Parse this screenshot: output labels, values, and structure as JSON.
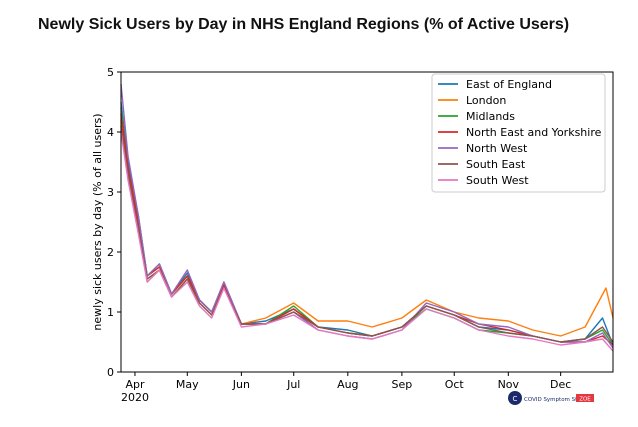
{
  "title": "Newly Sick Users by Day in NHS England Regions (% of Active Users)",
  "logo": {
    "text": "COVID Symptom Study",
    "badge": "ZOE"
  },
  "chart_data": {
    "type": "line",
    "ylabel": "newly sick users by day (% of all users)",
    "xlabel": "",
    "ylim": [
      0,
      5
    ],
    "y_ticks": [
      0,
      1,
      2,
      3,
      4,
      5
    ],
    "x_start": "2020-03-24",
    "x_end": "2020-12-31",
    "x_ticks": [
      {
        "label": "Apr",
        "date": "2020-04-01"
      },
      {
        "label": "May",
        "date": "2020-05-01"
      },
      {
        "label": "Jun",
        "date": "2020-06-01"
      },
      {
        "label": "Jul",
        "date": "2020-07-01"
      },
      {
        "label": "Aug",
        "date": "2020-08-01"
      },
      {
        "label": "Sep",
        "date": "2020-09-01"
      },
      {
        "label": "Oct",
        "date": "2020-10-01"
      },
      {
        "label": "Nov",
        "date": "2020-11-01"
      },
      {
        "label": "Dec",
        "date": "2020-12-01"
      }
    ],
    "x_year_label": "2020",
    "grid": false,
    "legend_position": "top-right",
    "series": [
      {
        "name": "East of England",
        "color": "#1f77b4",
        "points": [
          [
            "2020-03-24",
            4.5
          ],
          [
            "2020-03-28",
            3.5
          ],
          [
            "2020-04-03",
            2.6
          ],
          [
            "2020-04-08",
            1.6
          ],
          [
            "2020-04-15",
            1.8
          ],
          [
            "2020-04-22",
            1.3
          ],
          [
            "2020-05-01",
            1.65
          ],
          [
            "2020-05-08",
            1.2
          ],
          [
            "2020-05-15",
            1.0
          ],
          [
            "2020-05-22",
            1.5
          ],
          [
            "2020-06-01",
            0.8
          ],
          [
            "2020-06-15",
            0.85
          ],
          [
            "2020-07-01",
            1.05
          ],
          [
            "2020-07-15",
            0.75
          ],
          [
            "2020-08-01",
            0.7
          ],
          [
            "2020-08-15",
            0.6
          ],
          [
            "2020-09-01",
            0.75
          ],
          [
            "2020-09-15",
            1.1
          ],
          [
            "2020-10-01",
            0.95
          ],
          [
            "2020-10-15",
            0.75
          ],
          [
            "2020-11-01",
            0.7
          ],
          [
            "2020-11-15",
            0.6
          ],
          [
            "2020-12-01",
            0.5
          ],
          [
            "2020-12-15",
            0.55
          ],
          [
            "2020-12-25",
            0.9
          ],
          [
            "2020-12-31",
            0.45
          ]
        ]
      },
      {
        "name": "London",
        "color": "#ff7f0e",
        "points": [
          [
            "2020-03-24",
            4.2
          ],
          [
            "2020-03-28",
            3.3
          ],
          [
            "2020-04-03",
            2.4
          ],
          [
            "2020-04-08",
            1.5
          ],
          [
            "2020-04-15",
            1.7
          ],
          [
            "2020-04-22",
            1.25
          ],
          [
            "2020-05-01",
            1.55
          ],
          [
            "2020-05-08",
            1.15
          ],
          [
            "2020-05-15",
            0.95
          ],
          [
            "2020-05-22",
            1.4
          ],
          [
            "2020-06-01",
            0.8
          ],
          [
            "2020-06-15",
            0.9
          ],
          [
            "2020-07-01",
            1.15
          ],
          [
            "2020-07-15",
            0.85
          ],
          [
            "2020-08-01",
            0.85
          ],
          [
            "2020-08-15",
            0.75
          ],
          [
            "2020-09-01",
            0.9
          ],
          [
            "2020-09-15",
            1.2
          ],
          [
            "2020-10-01",
            1.0
          ],
          [
            "2020-10-15",
            0.9
          ],
          [
            "2020-11-01",
            0.85
          ],
          [
            "2020-11-15",
            0.7
          ],
          [
            "2020-12-01",
            0.6
          ],
          [
            "2020-12-15",
            0.75
          ],
          [
            "2020-12-27",
            1.4
          ],
          [
            "2020-12-31",
            0.9
          ]
        ]
      },
      {
        "name": "Midlands",
        "color": "#2ca02c",
        "points": [
          [
            "2020-03-24",
            4.4
          ],
          [
            "2020-03-28",
            3.4
          ],
          [
            "2020-04-03",
            2.5
          ],
          [
            "2020-04-08",
            1.6
          ],
          [
            "2020-04-15",
            1.8
          ],
          [
            "2020-04-22",
            1.3
          ],
          [
            "2020-05-01",
            1.6
          ],
          [
            "2020-05-08",
            1.2
          ],
          [
            "2020-05-15",
            1.0
          ],
          [
            "2020-05-22",
            1.45
          ],
          [
            "2020-06-01",
            0.8
          ],
          [
            "2020-06-15",
            0.8
          ],
          [
            "2020-07-01",
            1.1
          ],
          [
            "2020-07-15",
            0.75
          ],
          [
            "2020-08-01",
            0.65
          ],
          [
            "2020-08-15",
            0.6
          ],
          [
            "2020-09-01",
            0.75
          ],
          [
            "2020-09-15",
            1.05
          ],
          [
            "2020-10-01",
            0.9
          ],
          [
            "2020-10-15",
            0.7
          ],
          [
            "2020-11-01",
            0.65
          ],
          [
            "2020-11-15",
            0.6
          ],
          [
            "2020-12-01",
            0.5
          ],
          [
            "2020-12-15",
            0.55
          ],
          [
            "2020-12-25",
            0.7
          ],
          [
            "2020-12-31",
            0.45
          ]
        ]
      },
      {
        "name": "North East and Yorkshire",
        "color": "#d62728",
        "points": [
          [
            "2020-03-24",
            4.3
          ],
          [
            "2020-03-28",
            3.4
          ],
          [
            "2020-04-03",
            2.5
          ],
          [
            "2020-04-08",
            1.6
          ],
          [
            "2020-04-15",
            1.75
          ],
          [
            "2020-04-22",
            1.3
          ],
          [
            "2020-05-01",
            1.6
          ],
          [
            "2020-05-08",
            1.2
          ],
          [
            "2020-05-15",
            1.0
          ],
          [
            "2020-05-22",
            1.45
          ],
          [
            "2020-06-01",
            0.8
          ],
          [
            "2020-06-15",
            0.8
          ],
          [
            "2020-07-01",
            1.05
          ],
          [
            "2020-07-15",
            0.75
          ],
          [
            "2020-08-01",
            0.65
          ],
          [
            "2020-08-15",
            0.6
          ],
          [
            "2020-09-01",
            0.75
          ],
          [
            "2020-09-15",
            1.1
          ],
          [
            "2020-10-01",
            0.95
          ],
          [
            "2020-10-15",
            0.8
          ],
          [
            "2020-11-01",
            0.7
          ],
          [
            "2020-11-15",
            0.6
          ],
          [
            "2020-12-01",
            0.5
          ],
          [
            "2020-12-15",
            0.5
          ],
          [
            "2020-12-25",
            0.6
          ],
          [
            "2020-12-31",
            0.45
          ]
        ]
      },
      {
        "name": "North West",
        "color": "#9467bd",
        "points": [
          [
            "2020-03-24",
            4.8
          ],
          [
            "2020-03-28",
            3.6
          ],
          [
            "2020-04-03",
            2.6
          ],
          [
            "2020-04-08",
            1.6
          ],
          [
            "2020-04-15",
            1.8
          ],
          [
            "2020-04-22",
            1.3
          ],
          [
            "2020-05-01",
            1.7
          ],
          [
            "2020-05-08",
            1.2
          ],
          [
            "2020-05-15",
            1.0
          ],
          [
            "2020-05-22",
            1.5
          ],
          [
            "2020-06-01",
            0.8
          ],
          [
            "2020-06-15",
            0.8
          ],
          [
            "2020-07-01",
            1.0
          ],
          [
            "2020-07-15",
            0.7
          ],
          [
            "2020-08-01",
            0.6
          ],
          [
            "2020-08-15",
            0.55
          ],
          [
            "2020-09-01",
            0.7
          ],
          [
            "2020-09-15",
            1.15
          ],
          [
            "2020-10-01",
            1.0
          ],
          [
            "2020-10-15",
            0.8
          ],
          [
            "2020-11-01",
            0.75
          ],
          [
            "2020-11-15",
            0.6
          ],
          [
            "2020-12-01",
            0.5
          ],
          [
            "2020-12-15",
            0.5
          ],
          [
            "2020-12-25",
            0.65
          ],
          [
            "2020-12-31",
            0.4
          ]
        ]
      },
      {
        "name": "South East",
        "color": "#8c564b",
        "points": [
          [
            "2020-03-24",
            4.1
          ],
          [
            "2020-03-28",
            3.3
          ],
          [
            "2020-04-03",
            2.4
          ],
          [
            "2020-04-08",
            1.55
          ],
          [
            "2020-04-15",
            1.7
          ],
          [
            "2020-04-22",
            1.25
          ],
          [
            "2020-05-01",
            1.55
          ],
          [
            "2020-05-08",
            1.15
          ],
          [
            "2020-05-15",
            0.95
          ],
          [
            "2020-05-22",
            1.4
          ],
          [
            "2020-06-01",
            0.8
          ],
          [
            "2020-06-15",
            0.8
          ],
          [
            "2020-07-01",
            1.0
          ],
          [
            "2020-07-15",
            0.75
          ],
          [
            "2020-08-01",
            0.65
          ],
          [
            "2020-08-15",
            0.6
          ],
          [
            "2020-09-01",
            0.75
          ],
          [
            "2020-09-15",
            1.1
          ],
          [
            "2020-10-01",
            0.95
          ],
          [
            "2020-10-15",
            0.75
          ],
          [
            "2020-11-01",
            0.65
          ],
          [
            "2020-11-15",
            0.6
          ],
          [
            "2020-12-01",
            0.5
          ],
          [
            "2020-12-15",
            0.55
          ],
          [
            "2020-12-25",
            0.75
          ],
          [
            "2020-12-31",
            0.5
          ]
        ]
      },
      {
        "name": "South West",
        "color": "#e377c2",
        "points": [
          [
            "2020-03-24",
            4.0
          ],
          [
            "2020-03-28",
            3.2
          ],
          [
            "2020-04-03",
            2.3
          ],
          [
            "2020-04-08",
            1.5
          ],
          [
            "2020-04-15",
            1.7
          ],
          [
            "2020-04-22",
            1.25
          ],
          [
            "2020-05-01",
            1.5
          ],
          [
            "2020-05-08",
            1.1
          ],
          [
            "2020-05-15",
            0.9
          ],
          [
            "2020-05-22",
            1.4
          ],
          [
            "2020-06-01",
            0.75
          ],
          [
            "2020-06-15",
            0.8
          ],
          [
            "2020-07-01",
            0.95
          ],
          [
            "2020-07-15",
            0.7
          ],
          [
            "2020-08-01",
            0.6
          ],
          [
            "2020-08-15",
            0.55
          ],
          [
            "2020-09-01",
            0.7
          ],
          [
            "2020-09-15",
            1.05
          ],
          [
            "2020-10-01",
            0.9
          ],
          [
            "2020-10-15",
            0.7
          ],
          [
            "2020-11-01",
            0.6
          ],
          [
            "2020-11-15",
            0.55
          ],
          [
            "2020-12-01",
            0.45
          ],
          [
            "2020-12-15",
            0.5
          ],
          [
            "2020-12-25",
            0.55
          ],
          [
            "2020-12-31",
            0.35
          ]
        ]
      }
    ]
  }
}
